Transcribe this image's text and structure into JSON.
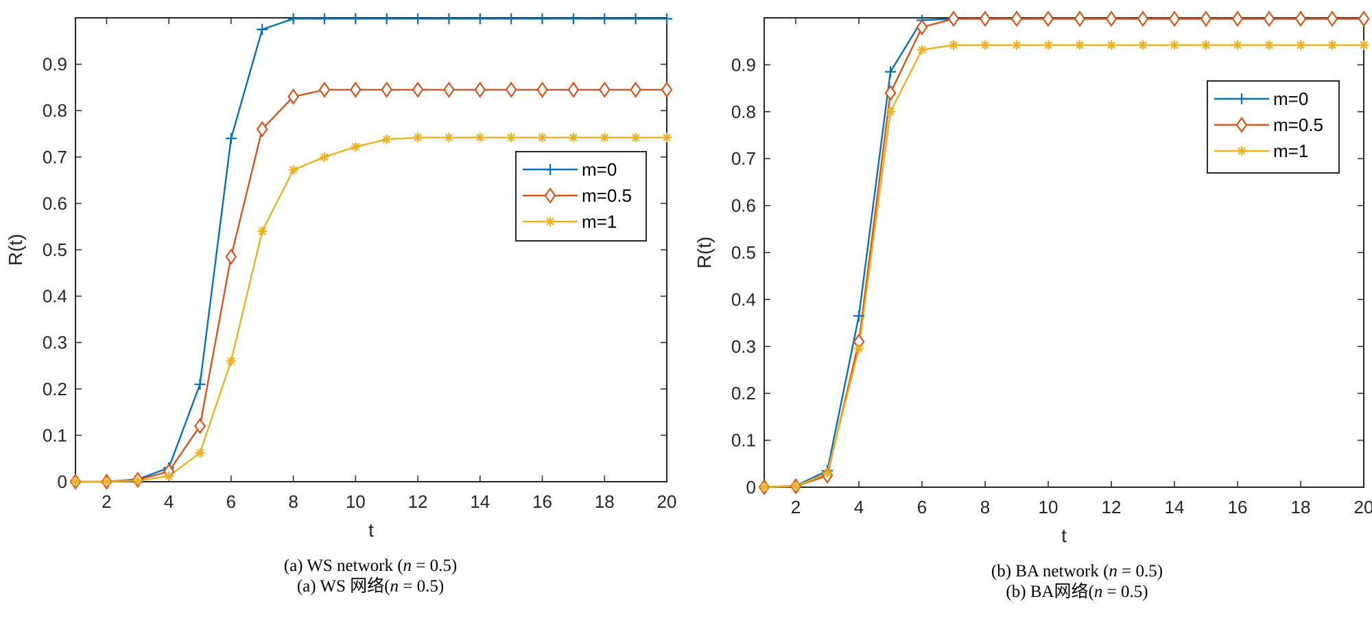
{
  "chart_data": [
    {
      "type": "line",
      "title": "",
      "xlabel": "t",
      "ylabel": "R(t)",
      "xlim": [
        1,
        20
      ],
      "ylim": [
        0,
        1
      ],
      "xticks": [
        2,
        4,
        6,
        8,
        10,
        12,
        14,
        16,
        18,
        20
      ],
      "yticks": [
        0,
        0.1,
        0.2,
        0.3,
        0.4,
        0.5,
        0.6,
        0.7,
        0.8,
        0.9
      ],
      "legend_position": "center-right",
      "x": [
        1,
        2,
        3,
        4,
        5,
        6,
        7,
        8,
        9,
        10,
        11,
        12,
        13,
        14,
        15,
        16,
        17,
        18,
        19,
        20
      ],
      "series": [
        {
          "name": "m=0",
          "color": "#0072BD",
          "marker": "plus",
          "values": [
            0,
            0,
            0.005,
            0.03,
            0.21,
            0.74,
            0.975,
            0.998,
            0.998,
            0.998,
            0.998,
            0.998,
            0.998,
            0.998,
            0.998,
            0.998,
            0.998,
            0.998,
            0.998,
            0.998
          ]
        },
        {
          "name": "m=0.5",
          "color": "#D95319",
          "marker": "diamond",
          "values": [
            0,
            0,
            0.004,
            0.022,
            0.12,
            0.485,
            0.76,
            0.83,
            0.845,
            0.845,
            0.845,
            0.845,
            0.845,
            0.845,
            0.845,
            0.845,
            0.845,
            0.845,
            0.845,
            0.845
          ]
        },
        {
          "name": "m=1",
          "color": "#EDB120",
          "marker": "asterisk",
          "values": [
            0,
            0,
            0.002,
            0.012,
            0.062,
            0.26,
            0.54,
            0.672,
            0.7,
            0.722,
            0.738,
            0.742,
            0.742,
            0.742,
            0.742,
            0.742,
            0.742,
            0.742,
            0.742,
            0.742
          ]
        }
      ]
    },
    {
      "type": "line",
      "title": "",
      "xlabel": "t",
      "ylabel": "R(t)",
      "xlim": [
        1,
        20
      ],
      "ylim": [
        0,
        1
      ],
      "xticks": [
        2,
        4,
        6,
        8,
        10,
        12,
        14,
        16,
        18,
        20
      ],
      "yticks": [
        0,
        0.1,
        0.2,
        0.3,
        0.4,
        0.5,
        0.6,
        0.7,
        0.8,
        0.9
      ],
      "legend_position": "upper-right",
      "x": [
        1,
        2,
        3,
        4,
        5,
        6,
        7,
        8,
        9,
        10,
        11,
        12,
        13,
        14,
        15,
        16,
        17,
        18,
        19,
        20
      ],
      "series": [
        {
          "name": "m=0",
          "color": "#0072BD",
          "marker": "plus",
          "values": [
            0,
            0.003,
            0.035,
            0.365,
            0.885,
            0.995,
            0.998,
            0.998,
            0.998,
            0.998,
            0.998,
            0.998,
            0.998,
            0.998,
            0.998,
            0.998,
            0.998,
            0.998,
            0.998,
            0.998
          ]
        },
        {
          "name": "m=0.5",
          "color": "#D95319",
          "marker": "diamond",
          "values": [
            0,
            0.002,
            0.025,
            0.31,
            0.84,
            0.98,
            0.998,
            0.998,
            0.998,
            0.998,
            0.998,
            0.998,
            0.998,
            0.998,
            0.998,
            0.998,
            0.998,
            0.998,
            0.998,
            0.998
          ]
        },
        {
          "name": "m=1",
          "color": "#EDB120",
          "marker": "asterisk",
          "values": [
            0,
            0.002,
            0.03,
            0.295,
            0.8,
            0.932,
            0.942,
            0.942,
            0.942,
            0.942,
            0.942,
            0.942,
            0.942,
            0.942,
            0.942,
            0.942,
            0.942,
            0.942,
            0.942,
            0.942
          ]
        }
      ]
    }
  ],
  "captions": [
    {
      "line1_pre": "(a) WS network (",
      "var": "n",
      "line1_post": " = 0.5)",
      "line2_pre": "(a) WS 网络(",
      "line2_post": " = 0.5)"
    },
    {
      "line1_pre": "(b) BA network  (",
      "var": "n",
      "line1_post": " = 0.5)",
      "line2_pre": "(b) BA网络(",
      "line2_post": " = 0.5)"
    }
  ]
}
